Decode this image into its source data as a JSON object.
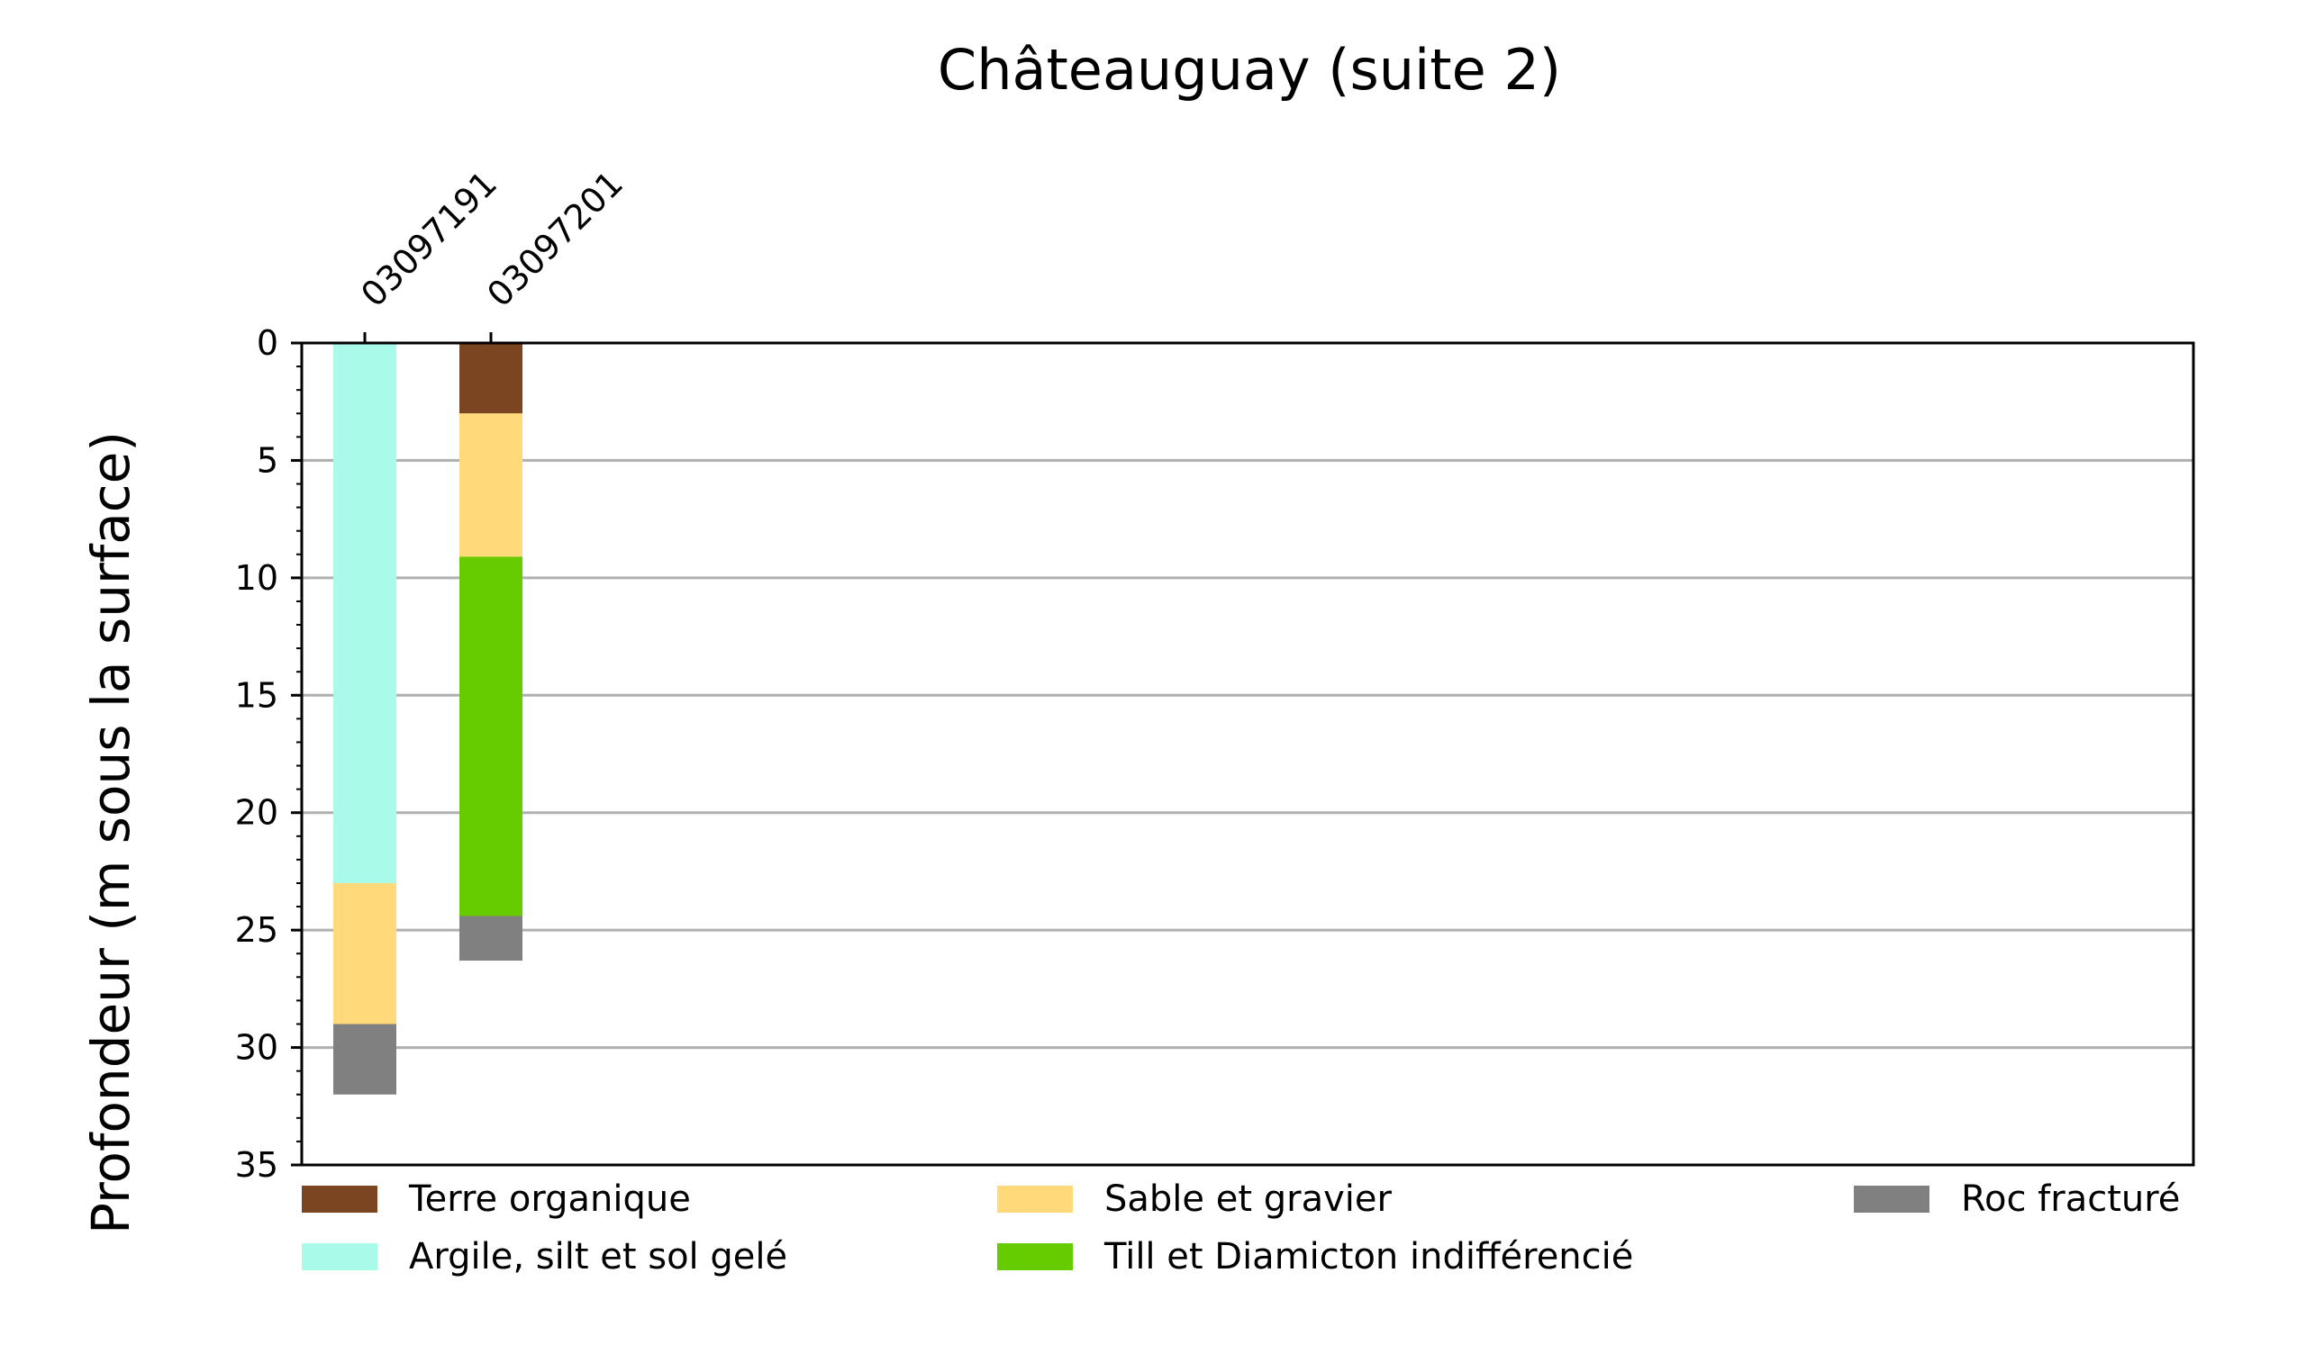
{
  "chart_data": {
    "type": "bar",
    "title": "Châteauguay (suite 2)",
    "xlabel": "",
    "ylabel": "Profondeur (m sous la surface)",
    "ylim": [
      0,
      35
    ],
    "y_inverted": true,
    "yticks": [
      0,
      5,
      10,
      15,
      20,
      25,
      30,
      35
    ],
    "grid": "horizontal",
    "legend_position": "bottom",
    "categories": [
      "03097191",
      "03097201"
    ],
    "layers": {
      "03097191": [
        {
          "unit": "Argile, silt et sol gelé",
          "top": 0,
          "bottom": 23
        },
        {
          "unit": "Sable et gravier",
          "top": 23,
          "bottom": 29
        },
        {
          "unit": "Roc fracturé",
          "top": 29,
          "bottom": 32
        }
      ],
      "03097201": [
        {
          "unit": "Terre organique",
          "top": 0,
          "bottom": 3
        },
        {
          "unit": "Sable et gravier",
          "top": 3,
          "bottom": 9.1
        },
        {
          "unit": "Till et Diamicton indifférencié",
          "top": 9.1,
          "bottom": 24.4
        },
        {
          "unit": "Roc fracturé",
          "top": 24.4,
          "bottom": 26.3
        }
      ]
    },
    "legend": [
      {
        "label": "Terre organique",
        "color": "#7b4522"
      },
      {
        "label": "Argile, silt et sol gelé",
        "color": "#aafaea"
      },
      {
        "label": "Sable et gravier",
        "color": "#ffd97a"
      },
      {
        "label": "Till et Diamicton indifférencié",
        "color": "#66cc00"
      },
      {
        "label": "Roc fracturé",
        "color": "#808080"
      }
    ]
  }
}
